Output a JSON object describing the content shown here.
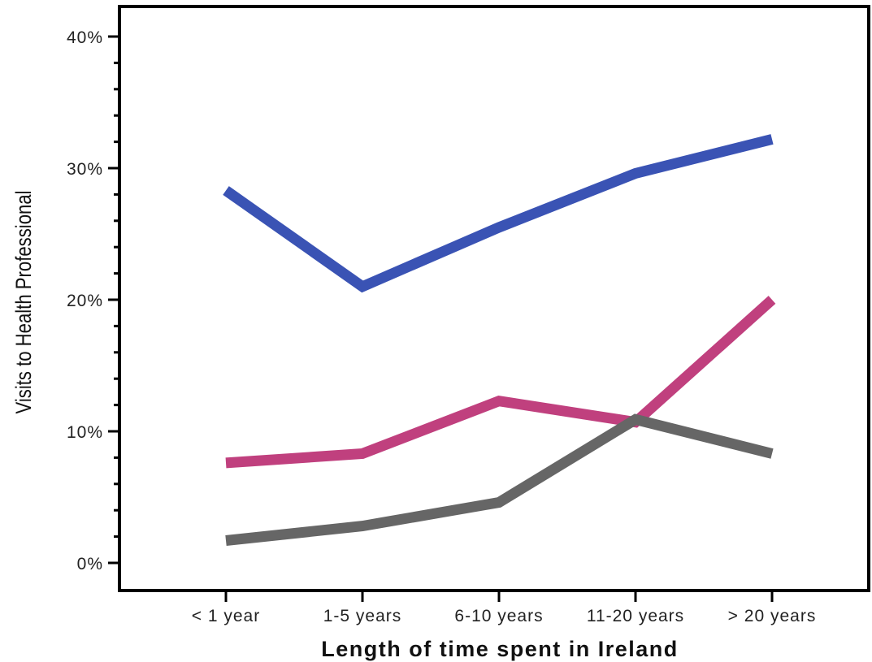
{
  "chart_data": {
    "type": "line",
    "xlabel": "Length of time spent in Ireland",
    "ylabel": "Visits to Health Professional",
    "categories": [
      "< 1 year",
      "1-5 years",
      "6-10 years",
      "11-20 years",
      "> 20 years"
    ],
    "ylim": [
      0,
      40
    ],
    "yticks": [
      0,
      10,
      20,
      30,
      40
    ],
    "ytick_labels": [
      "0%",
      "10%",
      "20%",
      "30%",
      "40%"
    ],
    "grid": false,
    "legend": "none",
    "series": [
      {
        "color": "#3a53b4",
        "values": [
          28.3,
          21.0,
          25.5,
          29.6,
          32.2
        ]
      },
      {
        "color": "#c0407e",
        "values": [
          7.6,
          8.3,
          12.3,
          10.7,
          20.0
        ]
      },
      {
        "color": "#666666",
        "values": [
          1.7,
          2.8,
          4.6,
          10.9,
          8.3
        ]
      }
    ]
  }
}
